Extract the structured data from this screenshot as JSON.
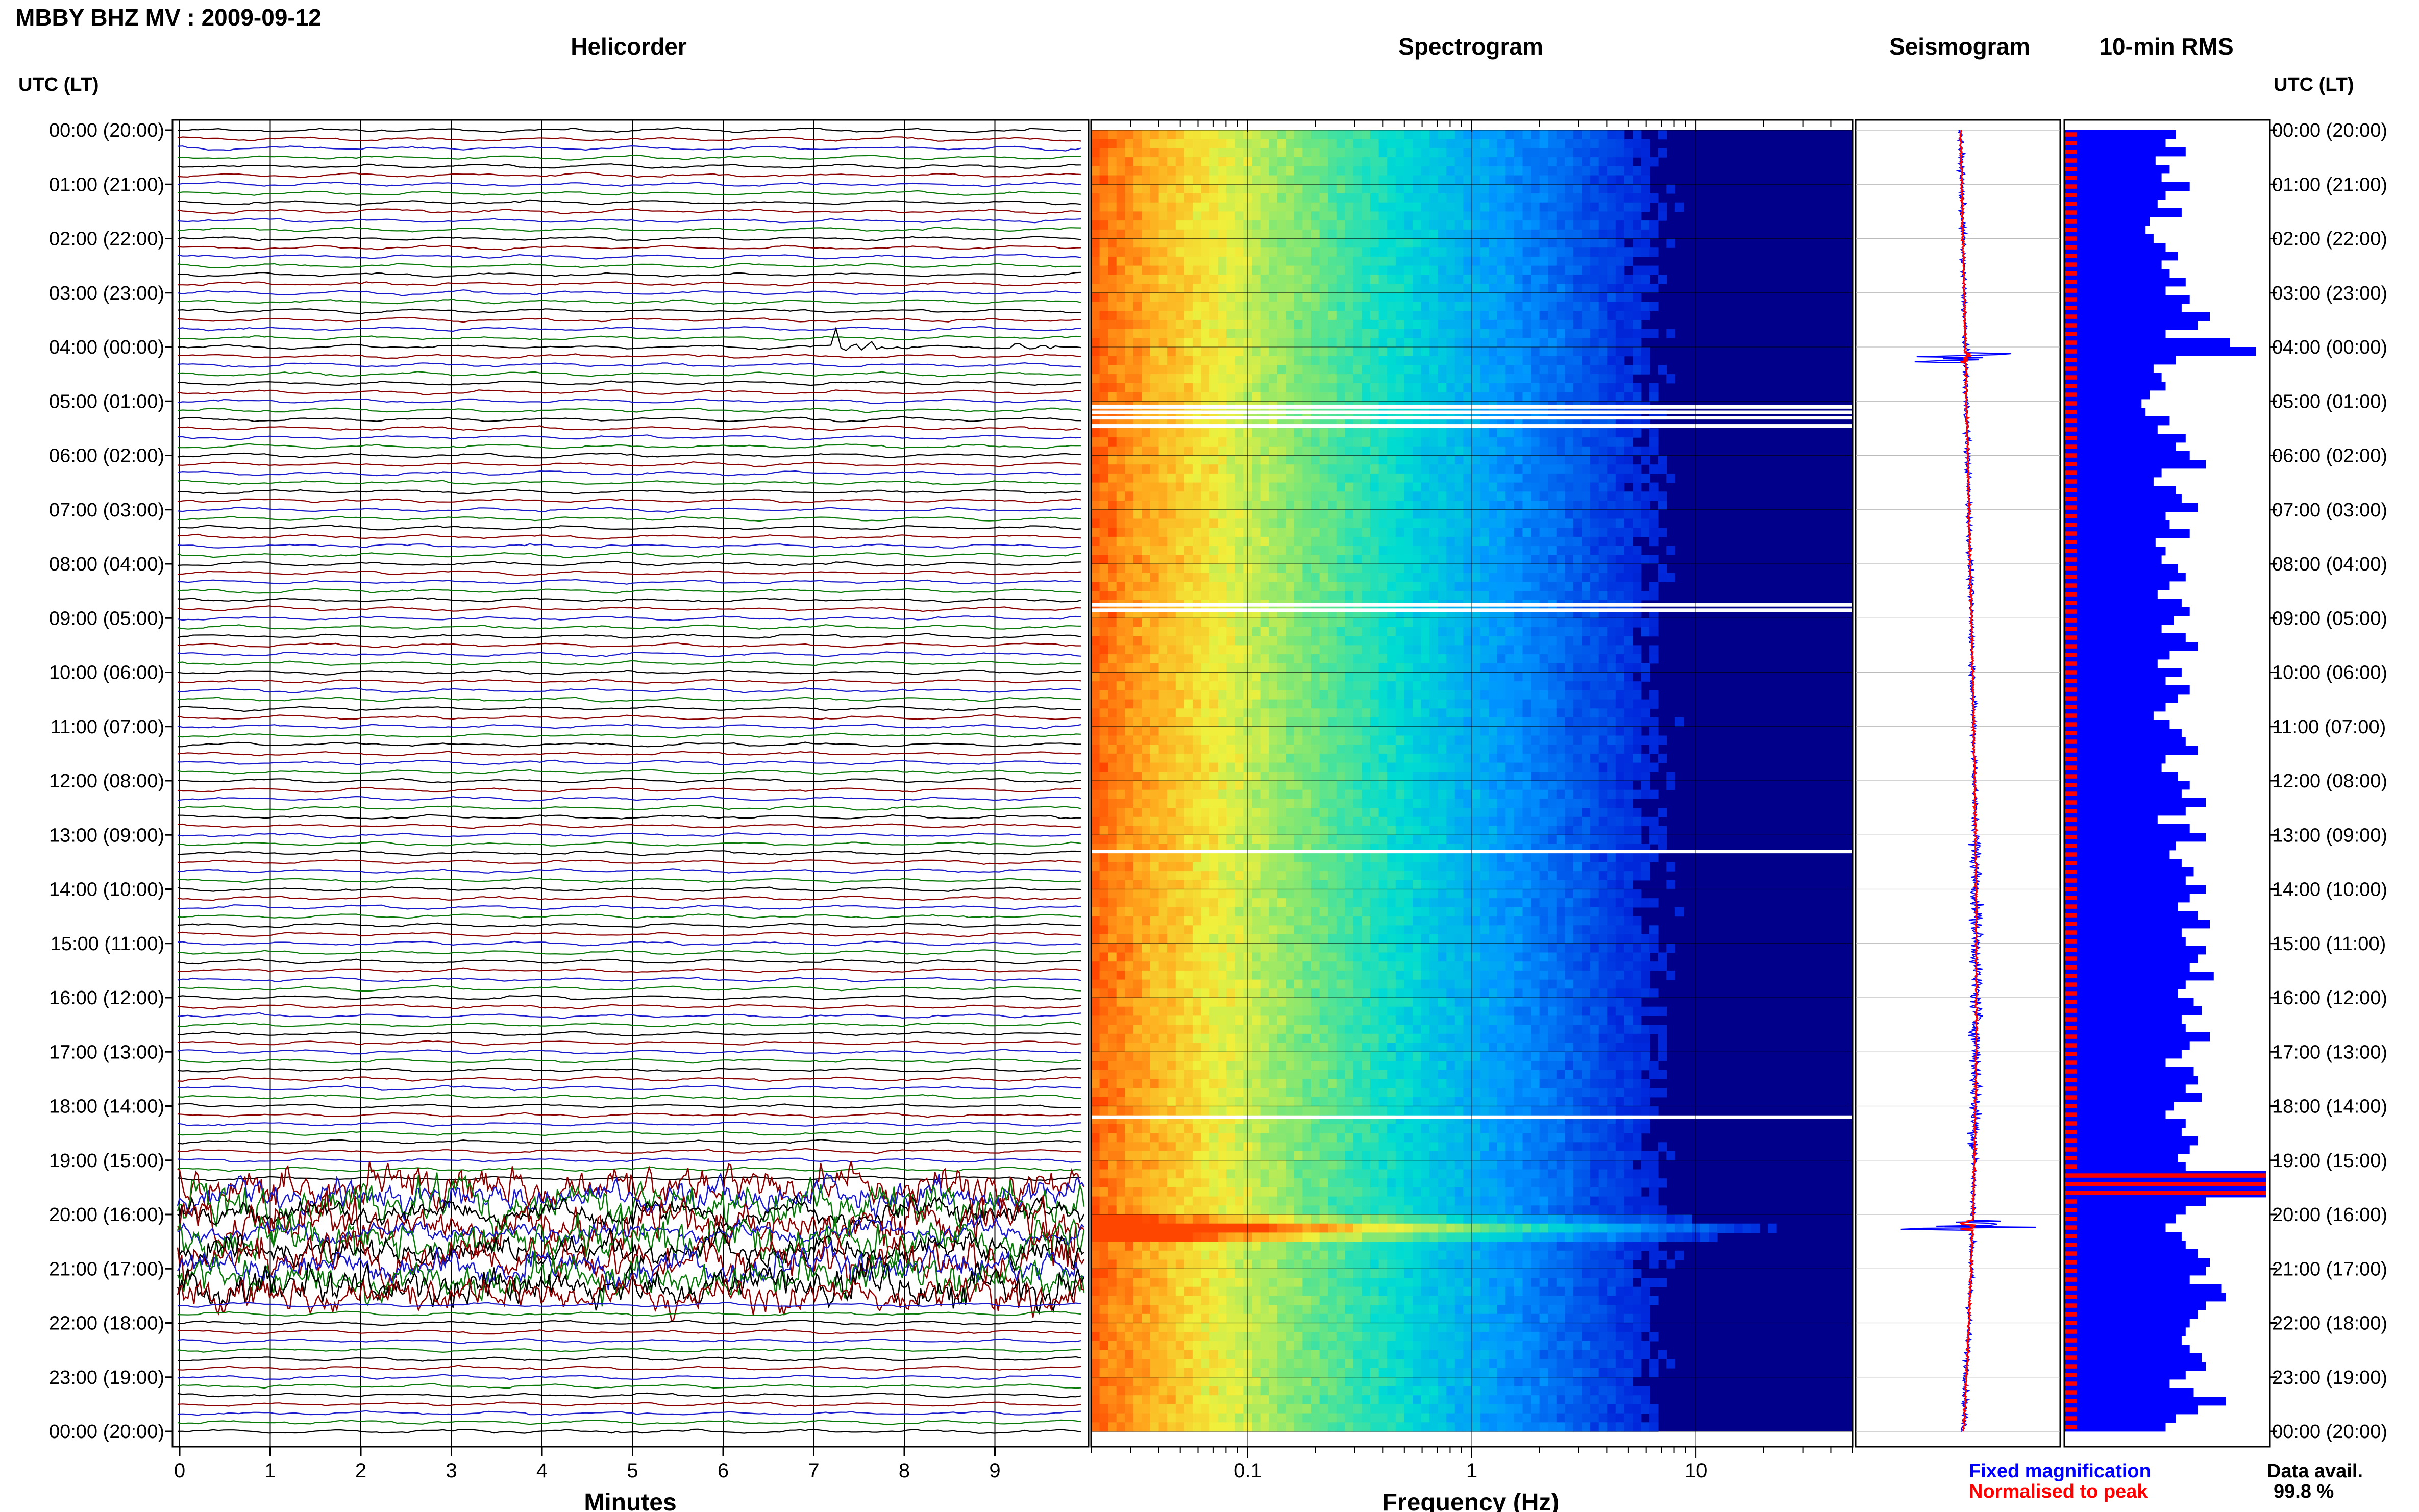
{
  "header": {
    "station_title": "MBBY BHZ MV : 2009-09-12",
    "time_axis_label": "UTC (LT)"
  },
  "panels": {
    "helicorder": "Helicorder",
    "spectrogram": "Spectrogram",
    "seismogram": "Seismogram",
    "rms": "10-min RMS"
  },
  "time_labels": [
    "00:00 (20:00)",
    "01:00 (21:00)",
    "02:00 (22:00)",
    "03:00 (23:00)",
    "04:00 (00:00)",
    "05:00 (01:00)",
    "06:00 (02:00)",
    "07:00 (03:00)",
    "08:00 (04:00)",
    "09:00 (05:00)",
    "10:00 (06:00)",
    "11:00 (07:00)",
    "12:00 (08:00)",
    "13:00 (09:00)",
    "14:00 (10:00)",
    "15:00 (11:00)",
    "16:00 (12:00)",
    "17:00 (13:00)",
    "18:00 (14:00)",
    "19:00 (15:00)",
    "20:00 (16:00)",
    "21:00 (17:00)",
    "22:00 (18:00)",
    "23:00 (19:00)",
    "00:00 (20:00)"
  ],
  "colors": {
    "trace_colors": [
      "#000000",
      "#8b0000",
      "#1a1acc",
      "#0a7a0a"
    ],
    "fixed_magnification": "#0000ff",
    "normalised": "#ff0000",
    "spectrogram_low": "#00008b",
    "spectrogram_high": "#ff4500"
  },
  "chart_data": [
    {
      "type": "line",
      "panel": "helicorder",
      "xlabel": "Minutes",
      "x_ticks": [
        "0",
        "1",
        "2",
        "3",
        "4",
        "5",
        "6",
        "7",
        "8",
        "9"
      ],
      "xlim": [
        0,
        10
      ],
      "rows_per_hour": 6,
      "hours": 24,
      "events": [
        {
          "hour": 4,
          "minute_start": 7.2,
          "minute_end": 8.6,
          "description_color": "#8b0000"
        },
        {
          "hour": 4,
          "minute_start": 9.2,
          "minute_end": 10,
          "description_color": "#000000"
        }
      ],
      "high_activity_hours": [
        19.5,
        21.5
      ]
    },
    {
      "type": "heatmap",
      "panel": "spectrogram",
      "xlabel": "Frequency (Hz)",
      "x_scale": "log",
      "xlim": [
        0.02,
        50
      ],
      "x_ticks": [
        "0.1",
        "1",
        "10"
      ],
      "x_tick_values": [
        0.1,
        1,
        10
      ],
      "gaps_hours": [
        5.1,
        5.2,
        5.3,
        5.45,
        8.75,
        8.85,
        13.3,
        18.2
      ],
      "strong_event_hour": 20.2
    },
    {
      "type": "line",
      "panel": "seismogram",
      "series": [
        {
          "name": "Fixed magnification",
          "color": "#0000ff"
        },
        {
          "name": "Normalised to peak",
          "color": "#ff0000"
        }
      ],
      "event_hours": [
        4.2,
        20.2
      ]
    },
    {
      "type": "bar",
      "panel": "rms",
      "interval_minutes": 10,
      "values_relative": [
        0.55,
        0.5,
        0.6,
        0.45,
        0.52,
        0.48,
        0.62,
        0.5,
        0.46,
        0.58,
        0.42,
        0.4,
        0.44,
        0.5,
        0.56,
        0.48,
        0.52,
        0.6,
        0.5,
        0.62,
        0.58,
        0.72,
        0.66,
        0.5,
        0.82,
        0.95,
        0.55,
        0.44,
        0.48,
        0.5,
        0.42,
        0.38,
        0.4,
        0.52,
        0.46,
        0.6,
        0.55,
        0.62,
        0.7,
        0.48,
        0.44,
        0.55,
        0.58,
        0.66,
        0.5,
        0.52,
        0.62,
        0.45,
        0.5,
        0.48,
        0.56,
        0.6,
        0.52,
        0.46,
        0.58,
        0.62,
        0.54,
        0.48,
        0.6,
        0.66,
        0.52,
        0.46,
        0.58,
        0.5,
        0.62,
        0.56,
        0.5,
        0.44,
        0.52,
        0.58,
        0.6,
        0.66,
        0.5,
        0.48,
        0.56,
        0.62,
        0.58,
        0.7,
        0.6,
        0.46,
        0.62,
        0.7,
        0.55,
        0.52,
        0.58,
        0.64,
        0.6,
        0.7,
        0.62,
        0.56,
        0.66,
        0.72,
        0.58,
        0.6,
        0.7,
        0.66,
        0.62,
        0.74,
        0.6,
        0.56,
        0.64,
        0.68,
        0.58,
        0.6,
        0.72,
        0.62,
        0.58,
        0.5,
        0.64,
        0.66,
        0.6,
        0.68,
        0.54,
        0.5,
        0.6,
        0.58,
        0.66,
        0.62,
        0.56,
        0.6,
        1.0,
        1.0,
        1.0,
        0.7,
        0.6,
        0.55,
        0.5,
        0.58,
        0.6,
        0.66,
        0.72,
        0.7,
        0.62,
        0.78,
        0.8,
        0.7,
        0.66,
        0.62,
        0.6,
        0.58,
        0.62,
        0.68,
        0.7,
        0.6,
        0.52,
        0.64,
        0.8,
        0.66,
        0.55,
        0.5
      ]
    }
  ],
  "footer": {
    "legend_fixed": "Fixed magnification",
    "legend_normalised": "Normalised to peak",
    "data_avail_label": "Data avail.",
    "data_avail_value": "99.8 %"
  }
}
